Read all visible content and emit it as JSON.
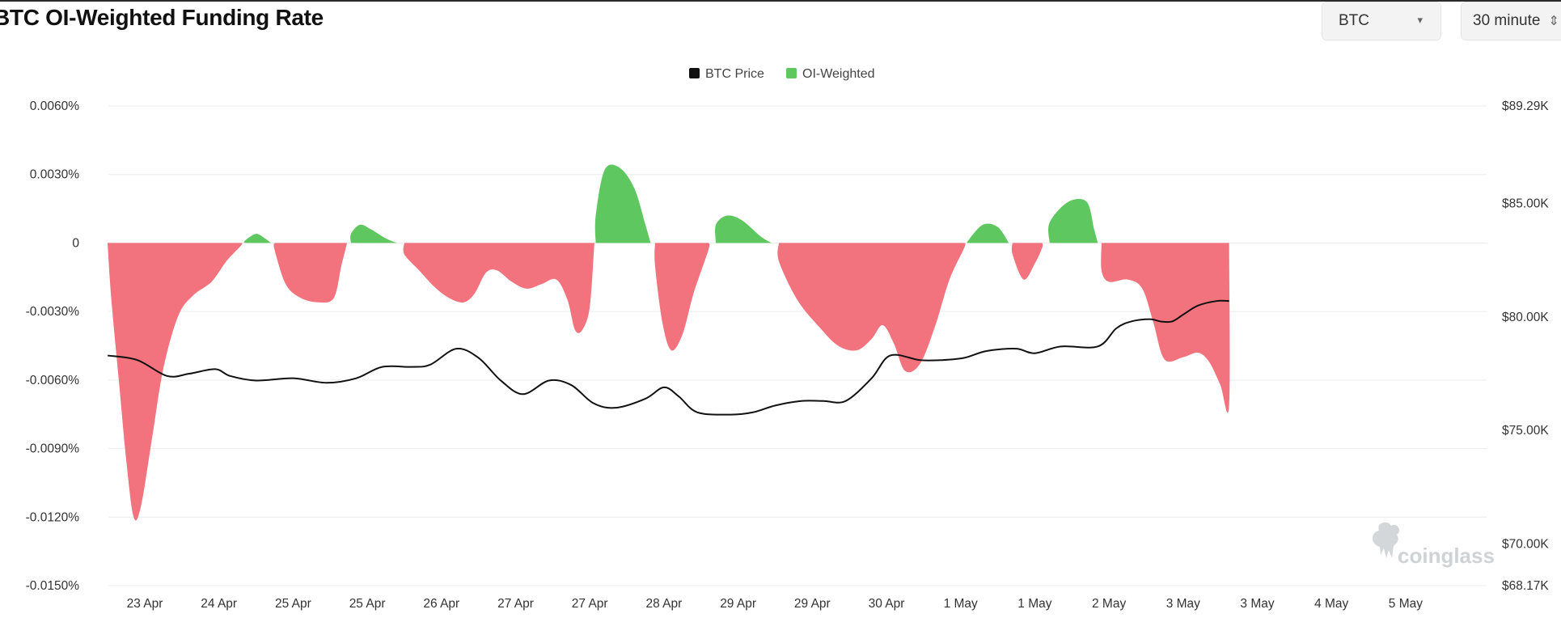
{
  "header": {
    "title": "BTC OI-Weighted Funding Rate",
    "coin_select": "BTC",
    "interval_select": "30 minute"
  },
  "watermark": "coinglass",
  "colors": {
    "positive": "#5fc75f",
    "negative": "#f2727d",
    "price_line": "#111111",
    "grid": "#ececec"
  },
  "chart_data": {
    "type": "area",
    "legend": [
      "BTC Price",
      "OI-Weighted"
    ],
    "legend_placement": "top-center",
    "grid": true,
    "x_tick_labels": [
      "23 Apr",
      "24 Apr",
      "25 Apr",
      "25 Apr",
      "26 Apr",
      "27 Apr",
      "27 Apr",
      "28 Apr",
      "29 Apr",
      "29 Apr",
      "30 Apr",
      "1 May",
      "1 May",
      "2 May",
      "3 May",
      "3 May",
      "4 May",
      "5 May"
    ],
    "x_range": [
      0,
      18.3
    ],
    "y_left": {
      "tick_labels": [
        "0.0060%",
        "0.0030%",
        "0",
        "-0.0030%",
        "-0.0060%",
        "-0.0090%",
        "-0.0120%",
        "-0.0150%"
      ],
      "ticks": [
        0.006,
        0.003,
        0,
        -0.003,
        -0.006,
        -0.009,
        -0.012,
        -0.015
      ],
      "range": [
        -0.015,
        0.006
      ],
      "unit": "%"
    },
    "y_right": {
      "tick_labels": [
        "$89.29K",
        "$85.00K",
        "$80.00K",
        "$75.00K",
        "$70.00K",
        "$68.17K"
      ],
      "ticks": [
        89.29,
        85,
        80,
        75,
        70,
        68.17
      ],
      "range": [
        68.17,
        89.29
      ],
      "unit": "$K"
    },
    "series": [
      {
        "name": "OI-Weighted",
        "axis": "left",
        "points": [
          [
            -0.5,
            -0.0001
          ],
          [
            -0.45,
            -0.0025
          ],
          [
            -0.35,
            -0.006
          ],
          [
            -0.25,
            -0.0095
          ],
          [
            -0.15,
            -0.012
          ],
          [
            -0.05,
            -0.0115
          ],
          [
            0.1,
            -0.0085
          ],
          [
            0.25,
            -0.0055
          ],
          [
            0.45,
            -0.0032
          ],
          [
            0.65,
            -0.0023
          ],
          [
            0.9,
            -0.0017
          ],
          [
            1.1,
            -0.0008
          ],
          [
            1.3,
            -0.0001
          ],
          [
            1.35,
            0.0001
          ],
          [
            1.5,
            0.0004
          ],
          [
            1.62,
            0.0002
          ],
          [
            1.7,
            0.0
          ],
          [
            1.75,
            -0.0003
          ],
          [
            1.9,
            -0.0018
          ],
          [
            2.1,
            -0.0024
          ],
          [
            2.35,
            -0.0026
          ],
          [
            2.55,
            -0.0024
          ],
          [
            2.65,
            -0.001
          ],
          [
            2.72,
            -0.0001
          ],
          [
            2.78,
            0.0004
          ],
          [
            2.9,
            0.0008
          ],
          [
            3.05,
            0.0006
          ],
          [
            3.25,
            0.0002
          ],
          [
            3.4,
            0.0
          ],
          [
            3.5,
            -0.0005
          ],
          [
            3.7,
            -0.0012
          ],
          [
            3.9,
            -0.0019
          ],
          [
            4.1,
            -0.0024
          ],
          [
            4.3,
            -0.0026
          ],
          [
            4.45,
            -0.0022
          ],
          [
            4.6,
            -0.0013
          ],
          [
            4.75,
            -0.0012
          ],
          [
            4.95,
            -0.0017
          ],
          [
            5.15,
            -0.002
          ],
          [
            5.35,
            -0.0018
          ],
          [
            5.55,
            -0.0016
          ],
          [
            5.7,
            -0.0025
          ],
          [
            5.8,
            -0.0038
          ],
          [
            5.9,
            -0.0038
          ],
          [
            6.0,
            -0.0028
          ],
          [
            6.06,
            -0.0001
          ],
          [
            6.08,
            0.0012
          ],
          [
            6.2,
            0.0032
          ],
          [
            6.4,
            0.0033
          ],
          [
            6.6,
            0.0024
          ],
          [
            6.75,
            0.0008
          ],
          [
            6.82,
            0.0
          ],
          [
            6.88,
            -0.001
          ],
          [
            6.98,
            -0.0035
          ],
          [
            7.1,
            -0.0047
          ],
          [
            7.25,
            -0.004
          ],
          [
            7.4,
            -0.0022
          ],
          [
            7.6,
            -0.0003
          ],
          [
            7.7,
            0.0008
          ],
          [
            7.85,
            0.0012
          ],
          [
            8.05,
            0.001
          ],
          [
            8.3,
            0.0003
          ],
          [
            8.45,
            0.0
          ],
          [
            8.55,
            -0.0008
          ],
          [
            8.8,
            -0.0025
          ],
          [
            9.1,
            -0.0037
          ],
          [
            9.35,
            -0.0045
          ],
          [
            9.6,
            -0.0047
          ],
          [
            9.8,
            -0.0042
          ],
          [
            9.95,
            -0.0036
          ],
          [
            10.1,
            -0.0044
          ],
          [
            10.25,
            -0.0056
          ],
          [
            10.45,
            -0.0053
          ],
          [
            10.65,
            -0.0037
          ],
          [
            10.85,
            -0.0016
          ],
          [
            11.05,
            -0.0002
          ],
          [
            11.1,
            0.0001
          ],
          [
            11.3,
            0.0008
          ],
          [
            11.5,
            0.0007
          ],
          [
            11.65,
            0.0
          ],
          [
            11.7,
            -0.0005
          ],
          [
            11.85,
            -0.0016
          ],
          [
            12.0,
            -0.0009
          ],
          [
            12.1,
            -0.0002
          ],
          [
            12.2,
            0.0009
          ],
          [
            12.45,
            0.0018
          ],
          [
            12.7,
            0.0018
          ],
          [
            12.8,
            0.0006
          ],
          [
            12.85,
            0.0
          ],
          [
            12.9,
            -0.0012
          ],
          [
            13.0,
            -0.0017
          ],
          [
            13.25,
            -0.0016
          ],
          [
            13.45,
            -0.002
          ],
          [
            13.6,
            -0.0035
          ],
          [
            13.75,
            -0.0051
          ],
          [
            14.0,
            -0.005
          ],
          [
            14.2,
            -0.0048
          ],
          [
            14.35,
            -0.0052
          ],
          [
            14.5,
            -0.0062
          ],
          [
            14.62,
            -0.0071
          ]
        ]
      },
      {
        "name": "BTC Price",
        "axis": "right",
        "points": [
          [
            -0.5,
            78.3
          ],
          [
            -0.1,
            78.1
          ],
          [
            0.3,
            77.4
          ],
          [
            0.6,
            77.5
          ],
          [
            0.95,
            77.7
          ],
          [
            1.15,
            77.4
          ],
          [
            1.5,
            77.2
          ],
          [
            2.0,
            77.3
          ],
          [
            2.45,
            77.1
          ],
          [
            2.85,
            77.3
          ],
          [
            3.2,
            77.8
          ],
          [
            3.6,
            77.8
          ],
          [
            3.85,
            77.9
          ],
          [
            4.2,
            78.6
          ],
          [
            4.5,
            78.2
          ],
          [
            4.8,
            77.2
          ],
          [
            5.1,
            76.6
          ],
          [
            5.45,
            77.2
          ],
          [
            5.75,
            77.0
          ],
          [
            6.05,
            76.2
          ],
          [
            6.35,
            76.0
          ],
          [
            6.75,
            76.4
          ],
          [
            7.0,
            76.9
          ],
          [
            7.2,
            76.5
          ],
          [
            7.45,
            75.8
          ],
          [
            7.9,
            75.7
          ],
          [
            8.2,
            75.8
          ],
          [
            8.5,
            76.1
          ],
          [
            8.85,
            76.3
          ],
          [
            9.15,
            76.3
          ],
          [
            9.45,
            76.3
          ],
          [
            9.8,
            77.3
          ],
          [
            10.05,
            78.3
          ],
          [
            10.45,
            78.1
          ],
          [
            10.75,
            78.1
          ],
          [
            11.05,
            78.2
          ],
          [
            11.35,
            78.5
          ],
          [
            11.75,
            78.6
          ],
          [
            12.0,
            78.4
          ],
          [
            12.35,
            78.7
          ],
          [
            12.85,
            78.7
          ],
          [
            13.1,
            79.5
          ],
          [
            13.3,
            79.8
          ],
          [
            13.55,
            79.9
          ],
          [
            13.7,
            79.8
          ],
          [
            13.85,
            79.8
          ],
          [
            14.0,
            80.1
          ],
          [
            14.2,
            80.5
          ],
          [
            14.45,
            80.7
          ],
          [
            14.62,
            80.7
          ]
        ]
      }
    ]
  }
}
